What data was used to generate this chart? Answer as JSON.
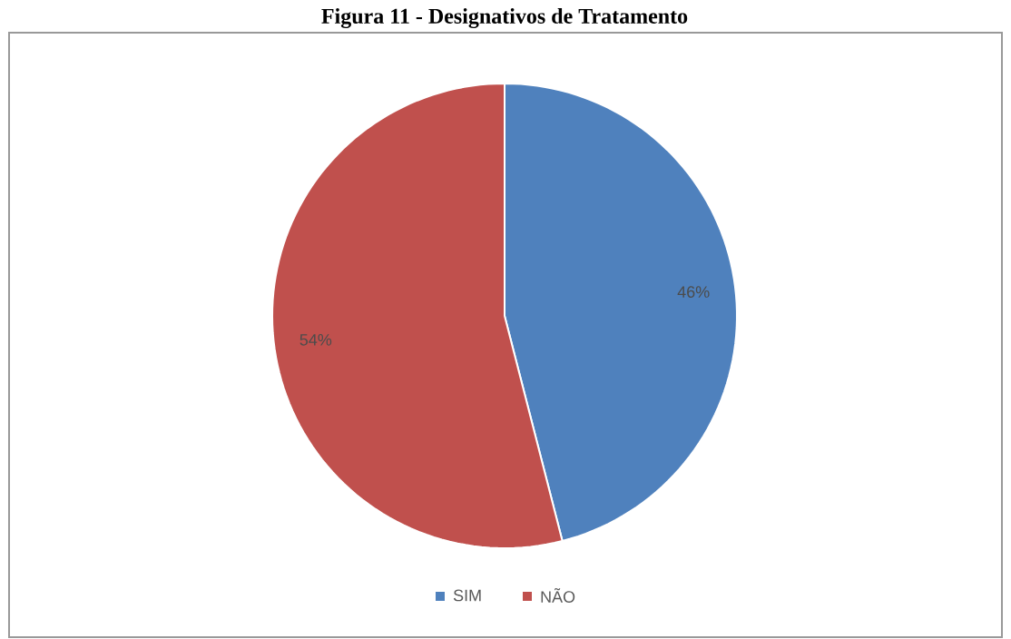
{
  "chart_data": {
    "type": "pie",
    "title": "Figura 11 - Designativos de Tratamento",
    "categories": [
      "SIM",
      "NÃO"
    ],
    "values": [
      46,
      54
    ],
    "value_labels": [
      "46%",
      "54%"
    ],
    "colors": [
      "#4f81bd",
      "#c0504d"
    ],
    "legend": "bottom"
  }
}
